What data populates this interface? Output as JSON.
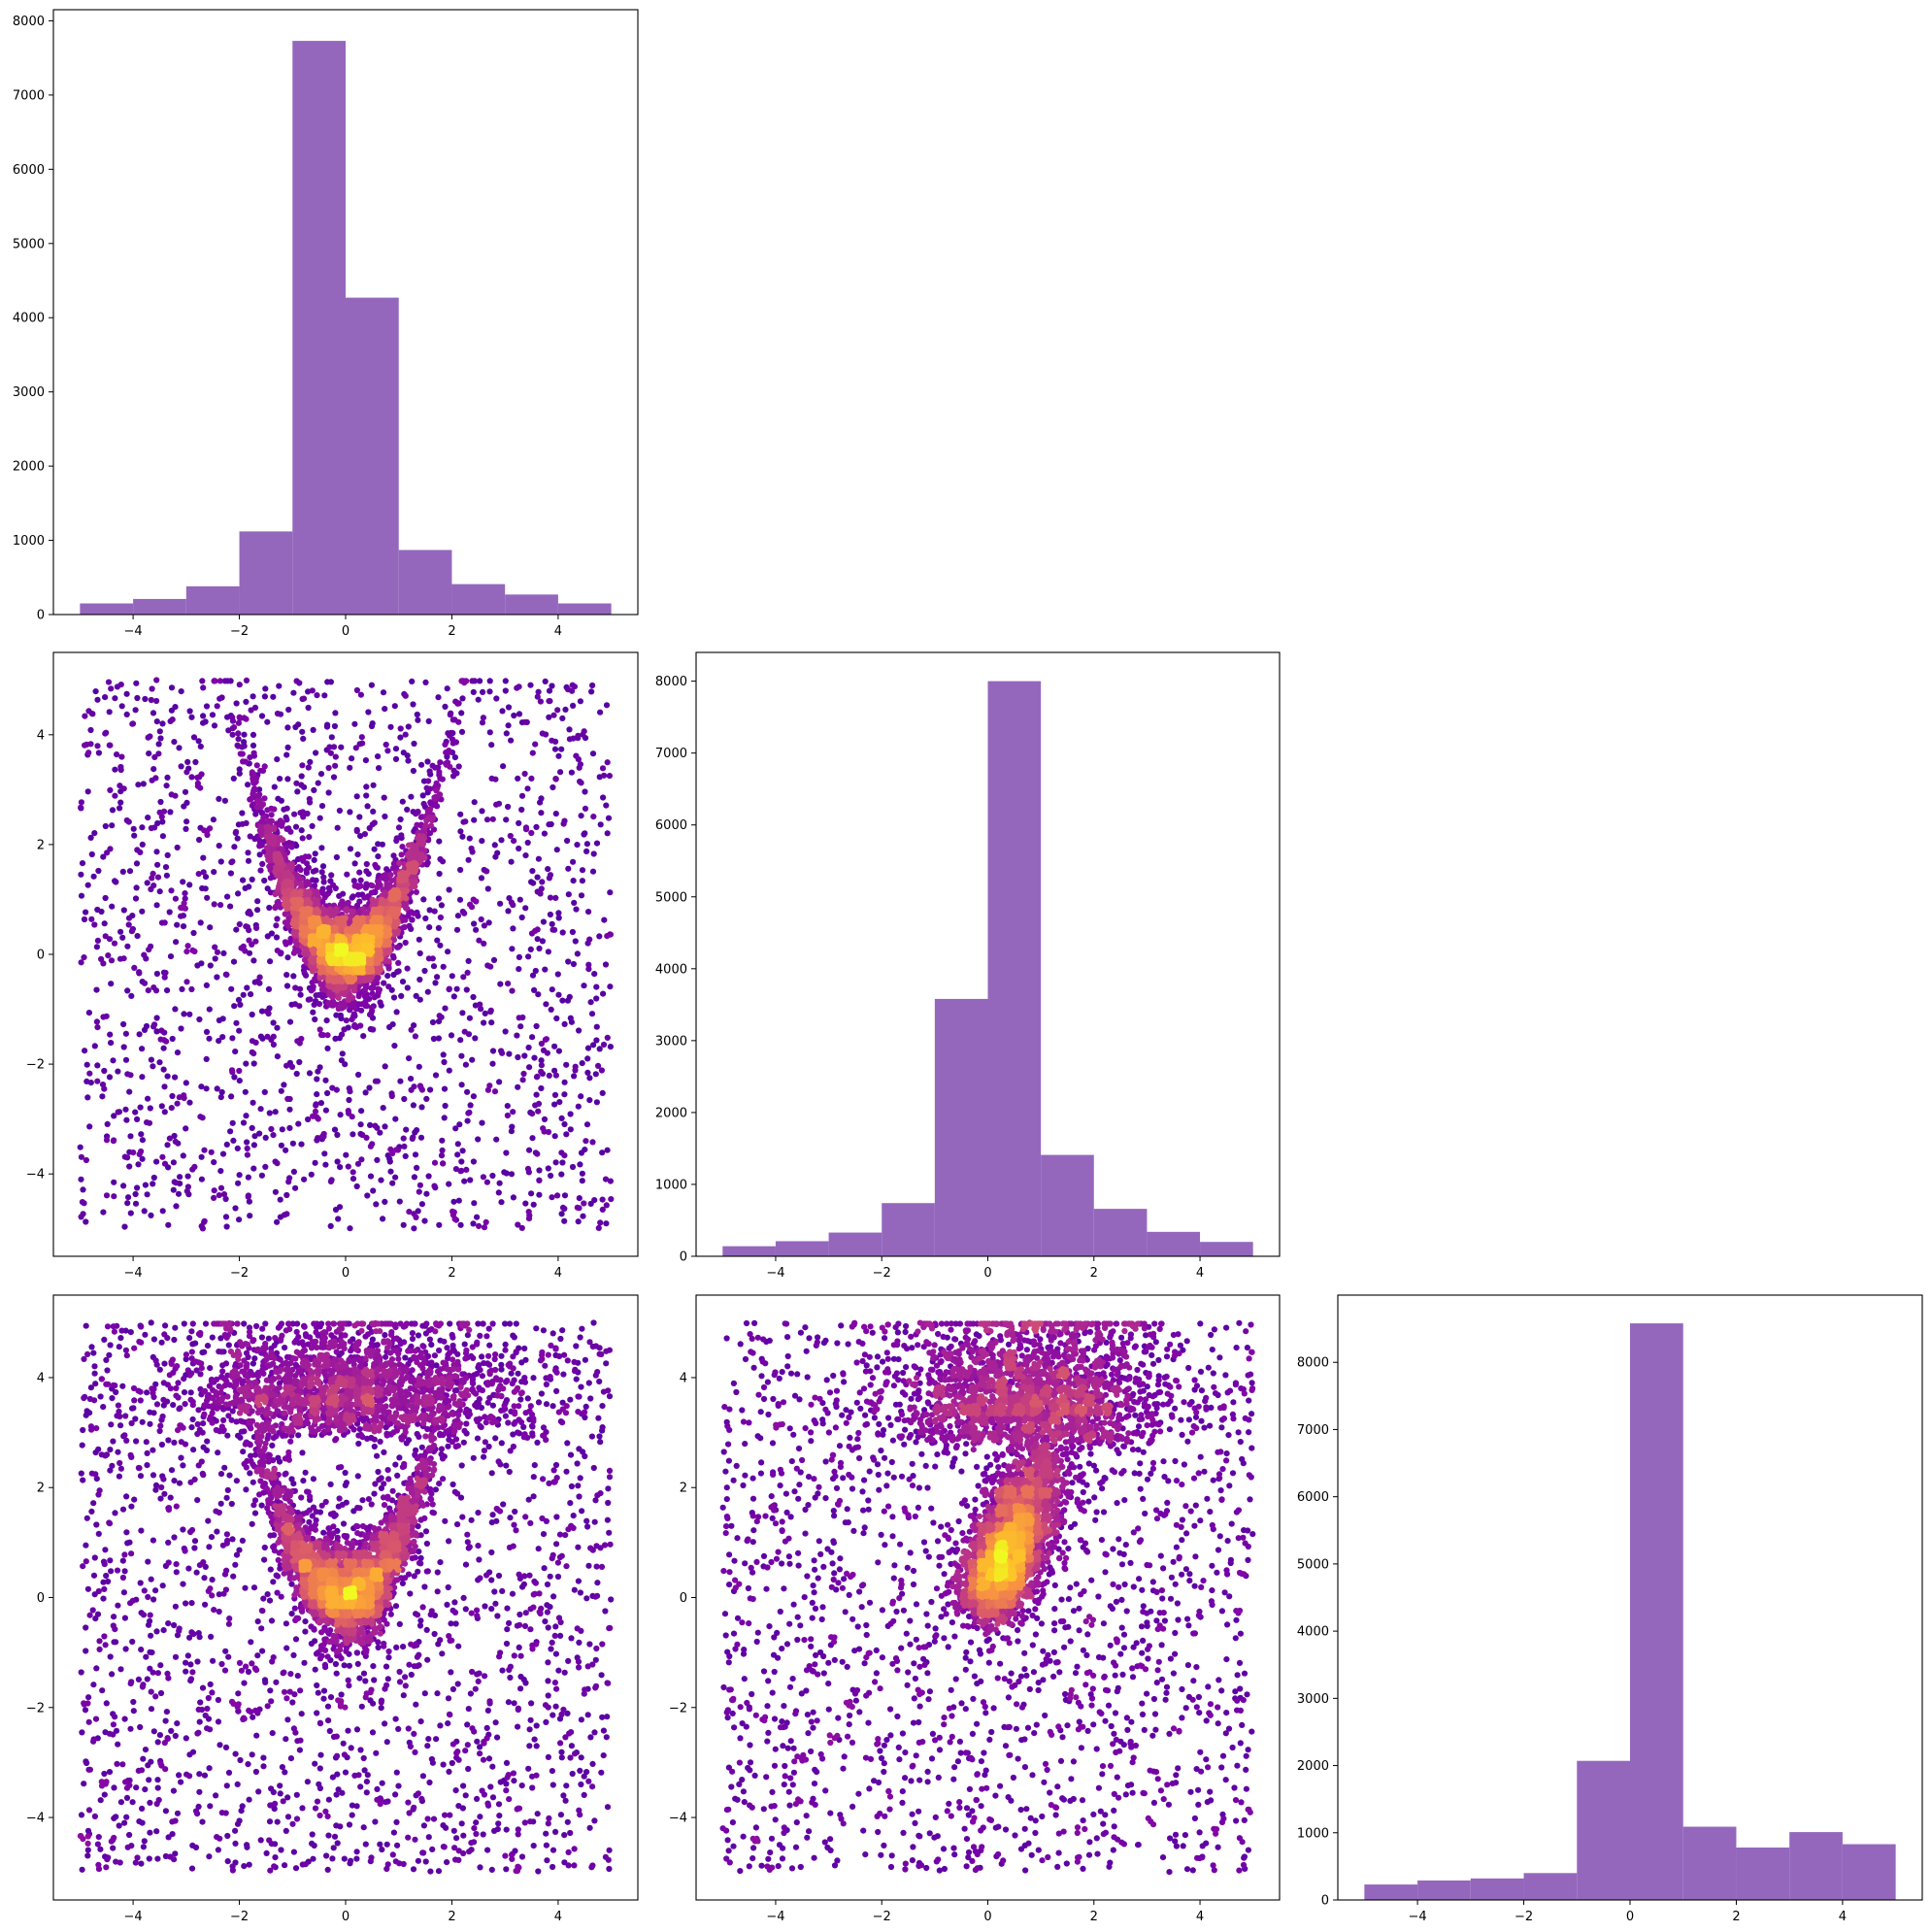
{
  "figure": {
    "background": "#ffffff",
    "layout": "lower-triangular corner plot, 3x3"
  },
  "colors": {
    "hist_fill": "#9467bd",
    "scatter_colormap": "plasma",
    "scatter_low": "#2a0593",
    "scatter_mid": "#b52f8c",
    "scatter_high": "#fcce25",
    "axes_edge": "#000000"
  },
  "chart_data": [
    {
      "id": "hist-0",
      "type": "bar",
      "position": "row 1, col 1",
      "bin_edges": [
        -5,
        -4,
        -3,
        -2,
        -1,
        0,
        1,
        2,
        3,
        4,
        5
      ],
      "values": [
        150,
        210,
        380,
        1120,
        7730,
        4270,
        870,
        410,
        270,
        150
      ],
      "xlim": [
        -5.5,
        5.5
      ],
      "ylim": [
        0,
        8150
      ],
      "xticks": [
        -4,
        -2,
        0,
        2,
        4
      ],
      "xtick_labels": [
        "−4",
        "−2",
        "0",
        "2",
        "4"
      ],
      "yticks": [
        0,
        1000,
        2000,
        3000,
        4000,
        5000,
        6000,
        7000,
        8000
      ],
      "ytick_labels": [
        "0",
        "1000",
        "2000",
        "3000",
        "4000",
        "5000",
        "6000",
        "7000",
        "8000"
      ]
    },
    {
      "id": "scatter-1-0",
      "type": "scatter",
      "position": "row 2, col 1",
      "color_by": "point density (plasma colormap)",
      "description_of_data": "uniform background over [-5,5]x[-5,5] plus a dense banana-shaped core y ≈ x^2 with peak density near (0,0)",
      "approx_points": 6000,
      "xlim": [
        -5.5,
        5.5
      ],
      "ylim": [
        -5.5,
        5.5
      ],
      "xticks": [
        -4,
        -2,
        0,
        2,
        4
      ],
      "xtick_labels": [
        "−4",
        "−2",
        "0",
        "2",
        "4"
      ],
      "yticks": [
        -4,
        -2,
        0,
        2,
        4
      ],
      "ytick_labels": [
        "−4",
        "−2",
        "0",
        "2",
        "4"
      ]
    },
    {
      "id": "hist-1",
      "type": "bar",
      "position": "row 2, col 2",
      "bin_edges": [
        -5,
        -4,
        -3,
        -2,
        -1,
        0,
        1,
        2,
        3,
        4,
        5
      ],
      "values": [
        140,
        210,
        330,
        740,
        3580,
        8000,
        1410,
        660,
        340,
        200
      ],
      "xlim": [
        -5.5,
        5.5
      ],
      "ylim": [
        0,
        8400
      ],
      "xticks": [
        -4,
        -2,
        0,
        2,
        4
      ],
      "xtick_labels": [
        "−4",
        "−2",
        "0",
        "2",
        "4"
      ],
      "yticks": [
        0,
        1000,
        2000,
        3000,
        4000,
        5000,
        6000,
        7000,
        8000
      ],
      "ytick_labels": [
        "0",
        "1000",
        "2000",
        "3000",
        "4000",
        "5000",
        "6000",
        "7000",
        "8000"
      ]
    },
    {
      "id": "scatter-2-0",
      "type": "scatter",
      "position": "row 3, col 1",
      "color_by": "point density (plasma colormap)",
      "description_of_data": "uniform background over [-5,5]x[-5,5] plus dense core y ≈ x^2 near (0,0) and a secondary dense band near y ≈ 4",
      "approx_points": 7000,
      "xlim": [
        -5.5,
        5.5
      ],
      "ylim": [
        -5.5,
        5.5
      ],
      "xticks": [
        -4,
        -2,
        0,
        2,
        4
      ],
      "xtick_labels": [
        "−4",
        "−2",
        "0",
        "2",
        "4"
      ],
      "yticks": [
        -4,
        -2,
        0,
        2,
        4
      ],
      "ytick_labels": [
        "−4",
        "−2",
        "0",
        "2",
        "4"
      ]
    },
    {
      "id": "scatter-2-1",
      "type": "scatter",
      "position": "row 3, col 2",
      "color_by": "point density (plasma colormap)",
      "description_of_data": "uniform background over [-5,5]x[-5,5] plus dense core near (0,0) rising along y ≈ 2x toward (2,5)",
      "approx_points": 7000,
      "xlim": [
        -5.5,
        5.5
      ],
      "ylim": [
        -5.5,
        5.5
      ],
      "xticks": [
        -4,
        -2,
        0,
        2,
        4
      ],
      "xtick_labels": [
        "−4",
        "−2",
        "0",
        "2",
        "4"
      ],
      "yticks": [
        -4,
        -2,
        0,
        2,
        4
      ],
      "ytick_labels": [
        "−4",
        "−2",
        "0",
        "2",
        "4"
      ]
    },
    {
      "id": "hist-2",
      "type": "bar",
      "position": "row 3, col 3",
      "bin_edges": [
        -5,
        -4,
        -3,
        -2,
        -1,
        0,
        1,
        2,
        3,
        4,
        5
      ],
      "values": [
        230,
        290,
        320,
        400,
        2070,
        8580,
        1090,
        780,
        1010,
        830
      ],
      "xlim": [
        -5.5,
        5.5
      ],
      "ylim": [
        0,
        9000
      ],
      "xticks": [
        -4,
        -2,
        0,
        2,
        4
      ],
      "xtick_labels": [
        "−4",
        "−2",
        "0",
        "2",
        "4"
      ],
      "yticks": [
        0,
        1000,
        2000,
        3000,
        4000,
        5000,
        6000,
        7000,
        8000
      ],
      "ytick_labels": [
        "0",
        "1000",
        "2000",
        "3000",
        "4000",
        "5000",
        "6000",
        "7000",
        "8000"
      ]
    }
  ]
}
